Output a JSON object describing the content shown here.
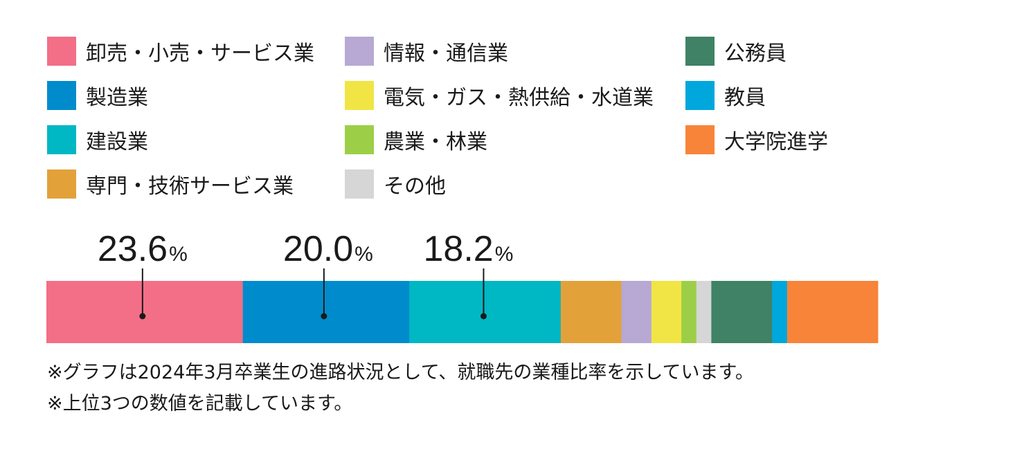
{
  "chart_data": {
    "type": "bar",
    "subtype": "100% stacked horizontal bar",
    "unit": "%",
    "categories": [
      "卸売・小売・サービス業",
      "製造業",
      "建設業",
      "専門・技術サービス業",
      "情報・通信業",
      "電気・ガス・熱供給・水道業",
      "農業・林業",
      "その他",
      "公務員",
      "教員",
      "大学院進学"
    ],
    "values": [
      23.6,
      20.0,
      18.2,
      7.3,
      3.6,
      3.6,
      1.8,
      1.8,
      7.3,
      1.8,
      10.9
    ],
    "colors": [
      "#f26f87",
      "#008ccc",
      "#00b7c4",
      "#e3a13a",
      "#b7a8d4",
      "#f0e544",
      "#9ccf47",
      "#d6d6d6",
      "#3f8265",
      "#00a7dc",
      "#f8843a"
    ],
    "labels": [
      {
        "index": 0,
        "text": "23.6",
        "unit": "%"
      },
      {
        "index": 1,
        "text": "20.0",
        "unit": "%"
      },
      {
        "index": 2,
        "text": "18.2",
        "unit": "%"
      }
    ],
    "legend_columns": [
      [
        "卸売・小売・サービス業",
        "製造業",
        "建設業",
        "専門・技術サービス業"
      ],
      [
        "情報・通信業",
        "電気・ガス・熱供給・水道業",
        "農業・林業",
        "その他"
      ],
      [
        "公務員",
        "教員",
        "大学院進学"
      ]
    ],
    "legend_placement": "top",
    "xlim": [
      0,
      100
    ],
    "grid": false
  },
  "notes": [
    "※グラフは2024年3月卒業生の進路状況として、就職先の業種比率を示しています。",
    "※上位3つの数値を記載しています。"
  ]
}
